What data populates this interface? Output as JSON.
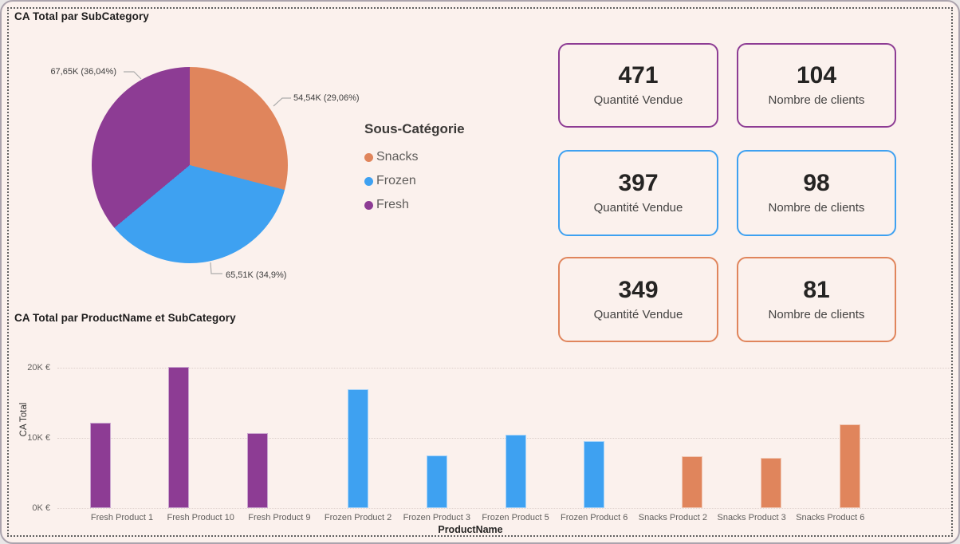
{
  "colors": {
    "canvas_background": "#FBF1ED",
    "outer_background": "#E9E7E7",
    "Snacks": "#E0855C",
    "Frozen": "#3EA1F1",
    "Fresh": "#8D3C94",
    "page_indicator": "#178D83"
  },
  "chart_data": [
    {
      "type": "pie",
      "title": "CA Total par SubCategory",
      "legend_title": "Sous-Catégorie",
      "legend_position": "right",
      "slices": [
        {
          "label": "Snacks",
          "value_k": 54.54,
          "percent": 29.06,
          "value_text": "54,54K (29,06%)",
          "color": "#E0855C"
        },
        {
          "label": "Frozen",
          "value_k": 65.51,
          "percent": 34.9,
          "value_text": "65,51K (34,9%)",
          "color": "#3EA1F1"
        },
        {
          "label": "Fresh",
          "value_k": 67.65,
          "percent": 36.04,
          "value_text": "67,65K (36,04%)",
          "color": "#8D3C94"
        }
      ]
    },
    {
      "type": "bar",
      "title": "CA Total par ProductName et SubCategory",
      "xlabel": "ProductName",
      "ylabel": "CA Total",
      "ylim_k": [
        0,
        21.3
      ],
      "yticks": [
        "0K €",
        "10K €",
        "20K €"
      ],
      "grid": true,
      "categories": [
        "Fresh Product 1",
        "Fresh Product 10",
        "Fresh Product 9",
        "Frozen Product 2",
        "Frozen Product 3",
        "Frozen Product 5",
        "Frozen Product 6",
        "Snacks Product 2",
        "Snacks Product 3",
        "Snacks Product 6"
      ],
      "groups": [
        "Fresh",
        "Fresh",
        "Fresh",
        "Frozen",
        "Frozen",
        "Frozen",
        "Frozen",
        "Snacks",
        "Snacks",
        "Snacks"
      ],
      "values_k": [
        12.2,
        20.1,
        10.7,
        16.9,
        7.5,
        10.5,
        9.5,
        7.4,
        7.2,
        11.9
      ]
    }
  ],
  "kpi": {
    "quantity_label": "Quantité Vendue",
    "clients_label": "Nombre de clients",
    "rows": [
      {
        "subcategory": "Fresh",
        "color": "#8D3C94",
        "quantity": "471",
        "clients": "104"
      },
      {
        "subcategory": "Frozen",
        "color": "#3EA1F1",
        "quantity": "397",
        "clients": "98"
      },
      {
        "subcategory": "Snacks",
        "color": "#E0855C",
        "quantity": "349",
        "clients": "81"
      }
    ]
  }
}
